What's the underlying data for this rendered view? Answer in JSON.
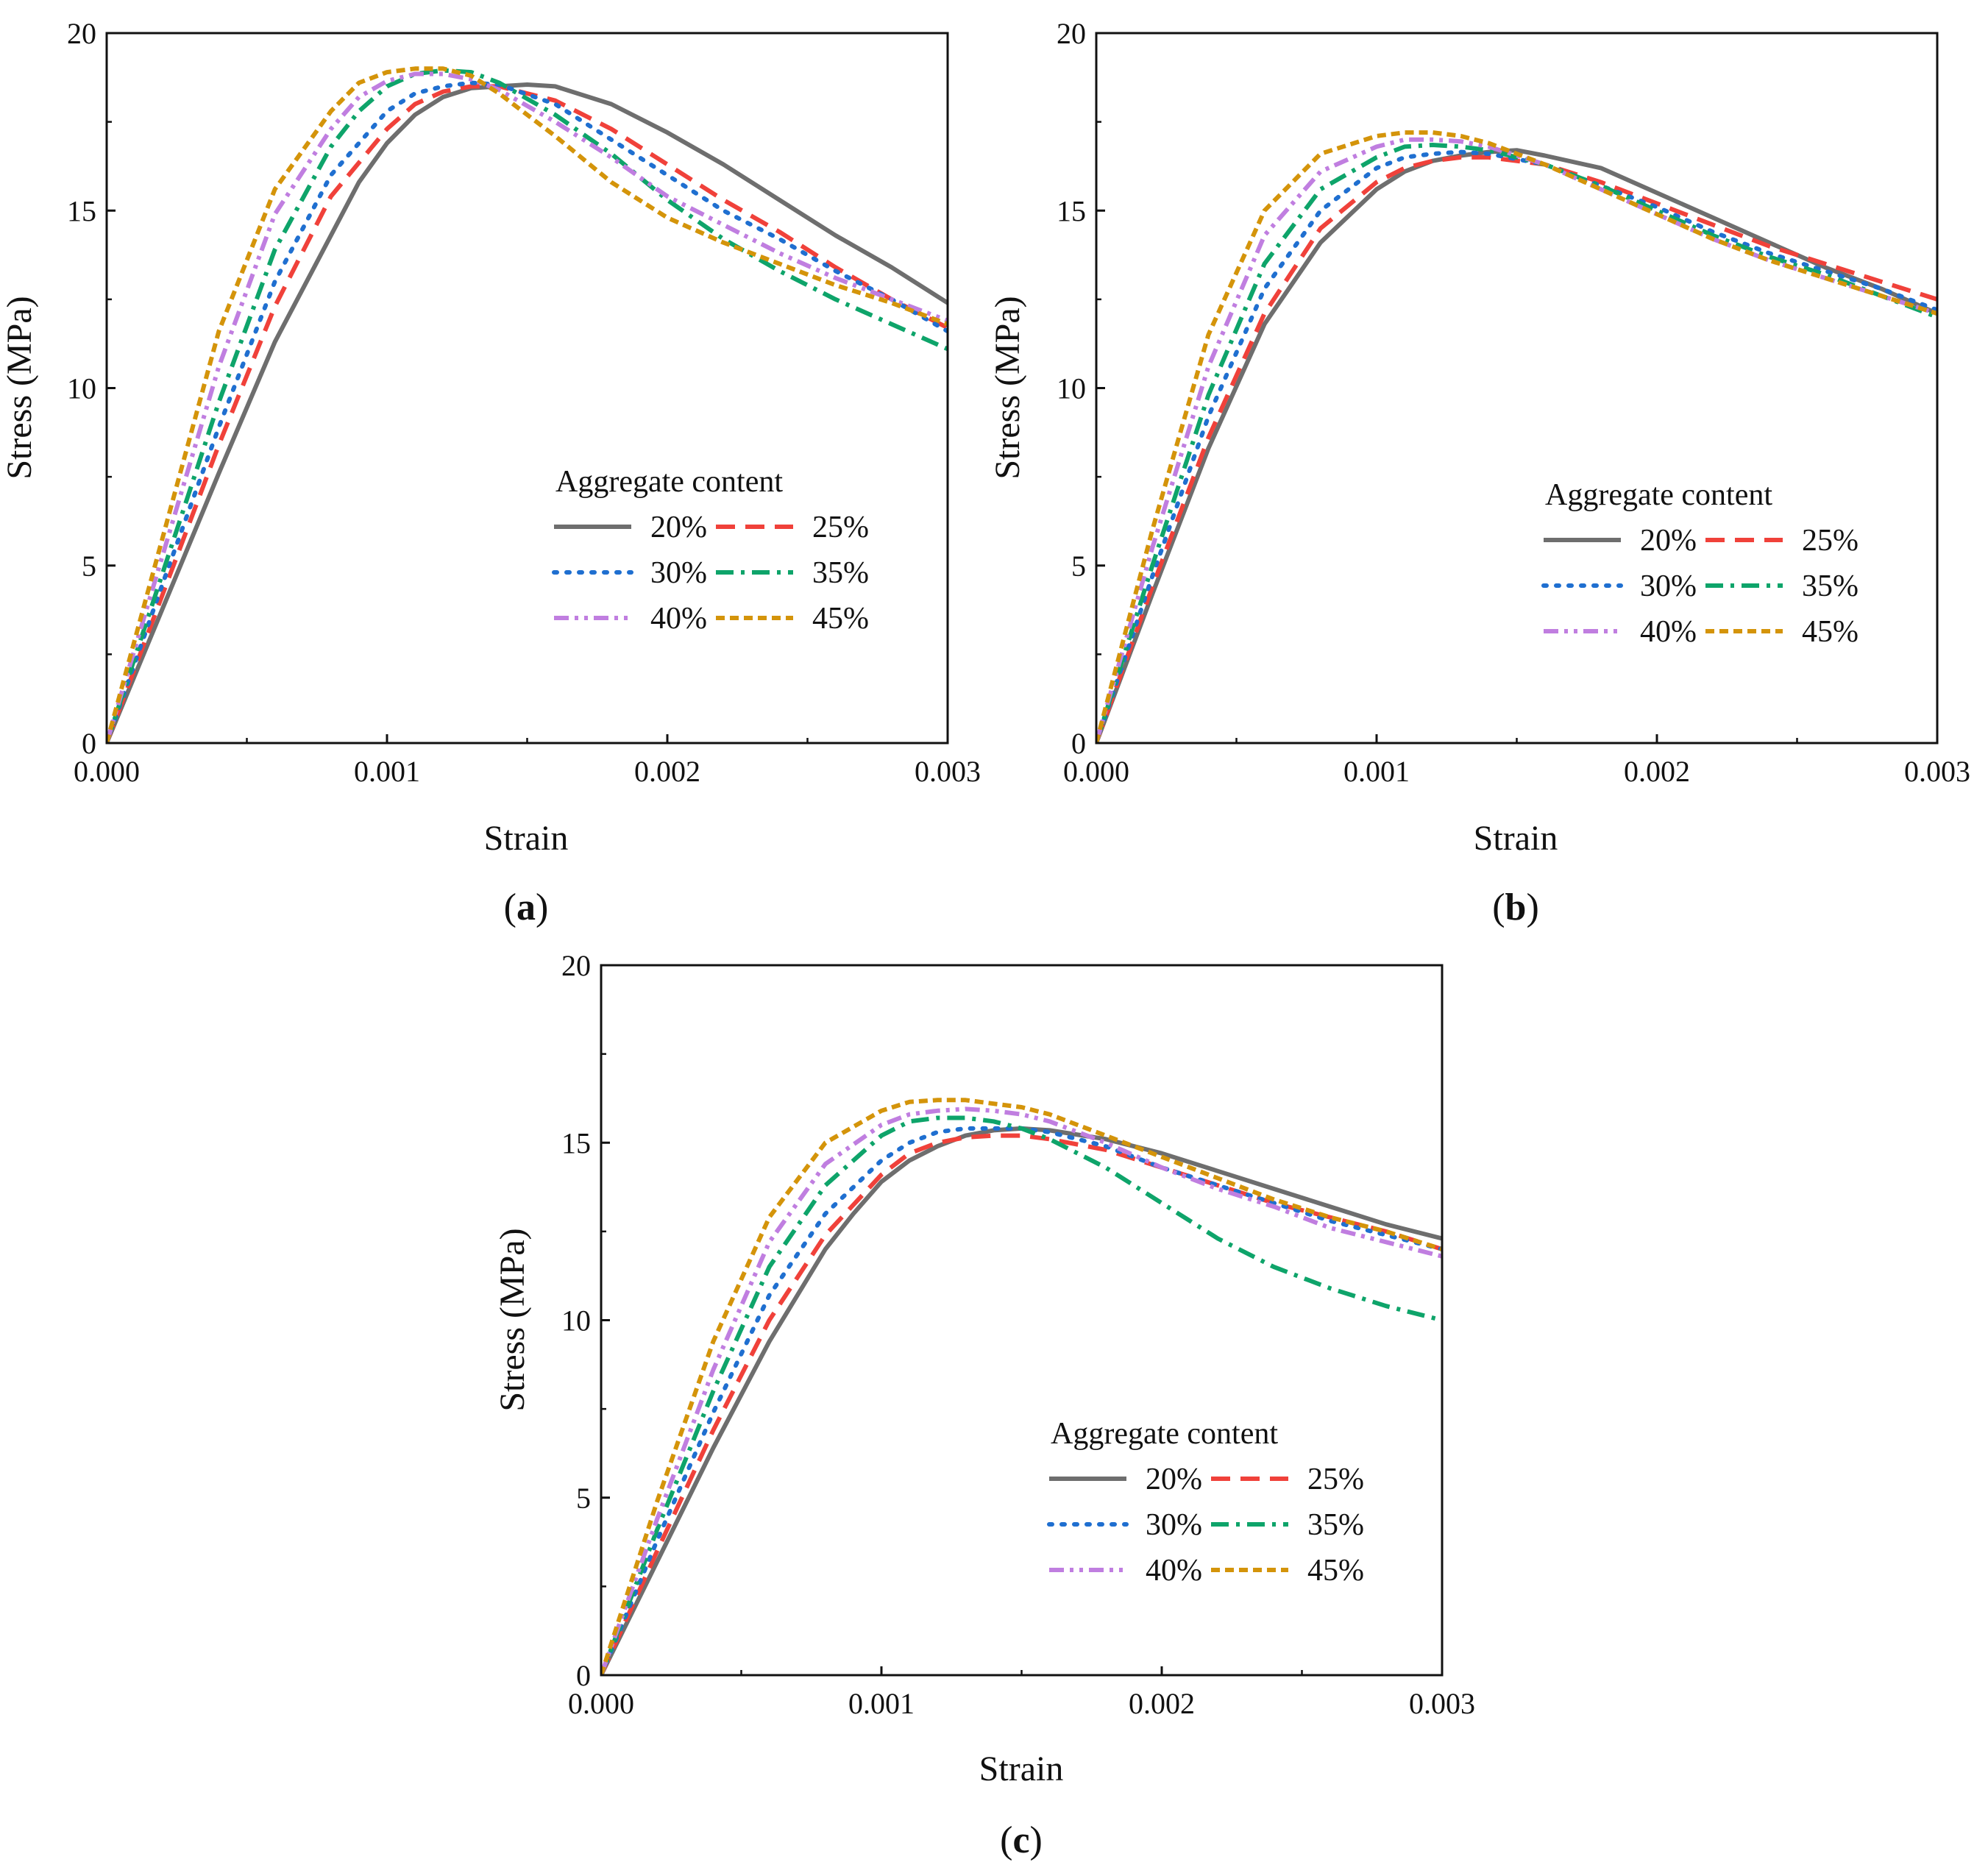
{
  "figure": {
    "panel_labels": [
      "a",
      "b",
      "c"
    ]
  },
  "legend_entries": [
    {
      "label": "20%",
      "color": "#6e6e6e",
      "dash": "solid"
    },
    {
      "label": "25%",
      "color": "#f0413a",
      "dash": "dash"
    },
    {
      "label": "30%",
      "color": "#1f6fd0",
      "dash": "dot"
    },
    {
      "label": "35%",
      "color": "#0ea46a",
      "dash": "dashdot"
    },
    {
      "label": "40%",
      "color": "#c07ee0",
      "dash": "dashdotdot"
    },
    {
      "label": "45%",
      "color": "#d4940a",
      "dash": "shortdash"
    }
  ],
  "chart_data": [
    {
      "type": "line",
      "panel": "a",
      "xlabel": "Strain",
      "ylabel": "Stress (MPa)",
      "xlim": [
        0,
        0.003
      ],
      "ylim": [
        0,
        20
      ],
      "xticks": [
        "0.000",
        "0.001",
        "0.002",
        "0.003"
      ],
      "yticks": [
        "0",
        "5",
        "10",
        "15",
        "20"
      ],
      "legend_title": "Aggregate content",
      "series": [
        {
          "name": "20%",
          "x": [
            0,
            0.0002,
            0.0004,
            0.0006,
            0.0008,
            0.0009,
            0.001,
            0.0011,
            0.0012,
            0.0013,
            0.0014,
            0.0015,
            0.0016,
            0.0018,
            0.002,
            0.0022,
            0.0024,
            0.0026,
            0.0028,
            0.003
          ],
          "y": [
            0,
            3.8,
            7.6,
            11.3,
            14.3,
            15.8,
            16.9,
            17.7,
            18.2,
            18.45,
            18.5,
            18.55,
            18.5,
            18.0,
            17.2,
            16.3,
            15.3,
            14.3,
            13.4,
            12.4
          ]
        },
        {
          "name": "25%",
          "x": [
            0,
            0.0002,
            0.0004,
            0.0006,
            0.0008,
            0.001,
            0.0011,
            0.0012,
            0.0013,
            0.0014,
            0.0016,
            0.0018,
            0.002,
            0.0022,
            0.0024,
            0.0026,
            0.0028,
            0.003
          ],
          "y": [
            0,
            4.2,
            8.4,
            12.3,
            15.4,
            17.3,
            18.0,
            18.35,
            18.5,
            18.5,
            18.1,
            17.3,
            16.3,
            15.3,
            14.4,
            13.4,
            12.5,
            11.7
          ]
        },
        {
          "name": "30%",
          "x": [
            0,
            0.0002,
            0.0004,
            0.0006,
            0.0008,
            0.001,
            0.0011,
            0.0012,
            0.0013,
            0.0014,
            0.0016,
            0.0018,
            0.002,
            0.0022,
            0.0024,
            0.0026,
            0.0028,
            0.003
          ],
          "y": [
            0,
            4.5,
            8.9,
            13.0,
            16.0,
            17.8,
            18.3,
            18.5,
            18.6,
            18.55,
            18.0,
            17.0,
            16.0,
            15.0,
            14.2,
            13.3,
            12.5,
            11.6
          ]
        },
        {
          "name": "35%",
          "x": [
            0,
            0.0002,
            0.0004,
            0.0006,
            0.0008,
            0.0009,
            0.001,
            0.0011,
            0.0012,
            0.0013,
            0.0014,
            0.0016,
            0.0018,
            0.002,
            0.0022,
            0.0024,
            0.0026,
            0.0028,
            0.003
          ],
          "y": [
            0,
            4.8,
            9.6,
            13.9,
            16.8,
            17.8,
            18.5,
            18.85,
            18.95,
            18.9,
            18.6,
            17.7,
            16.6,
            15.3,
            14.2,
            13.3,
            12.5,
            11.8,
            11.1
          ]
        },
        {
          "name": "40%",
          "x": [
            0,
            0.0002,
            0.0004,
            0.0006,
            0.0008,
            0.0009,
            0.001,
            0.0011,
            0.0012,
            0.0013,
            0.0014,
            0.0016,
            0.0018,
            0.002,
            0.0022,
            0.0024,
            0.0026,
            0.0028,
            0.003
          ],
          "y": [
            0,
            5.3,
            10.6,
            14.9,
            17.3,
            18.2,
            18.65,
            18.85,
            18.85,
            18.7,
            18.4,
            17.5,
            16.5,
            15.4,
            14.6,
            13.8,
            13.1,
            12.5,
            11.9
          ]
        },
        {
          "name": "45%",
          "x": [
            0,
            0.0002,
            0.0004,
            0.0006,
            0.0008,
            0.0009,
            0.001,
            0.0011,
            0.0012,
            0.0013,
            0.0014,
            0.0016,
            0.0018,
            0.002,
            0.0022,
            0.0024,
            0.0026,
            0.0028,
            0.003
          ],
          "y": [
            0,
            5.8,
            11.6,
            15.6,
            17.8,
            18.6,
            18.9,
            19.0,
            19.0,
            18.8,
            18.3,
            17.1,
            15.8,
            14.8,
            14.1,
            13.5,
            12.9,
            12.4,
            11.8
          ]
        }
      ]
    },
    {
      "type": "line",
      "panel": "b",
      "xlabel": "Strain",
      "ylabel": "Stress (MPa)",
      "xlim": [
        0,
        0.003
      ],
      "ylim": [
        0,
        20
      ],
      "xticks": [
        "0.000",
        "0.001",
        "0.002",
        "0.003"
      ],
      "yticks": [
        "0",
        "5",
        "10",
        "15",
        "20"
      ],
      "legend_title": "Aggregate content",
      "series": [
        {
          "name": "20%",
          "x": [
            0,
            0.0002,
            0.0004,
            0.0006,
            0.0008,
            0.001,
            0.0011,
            0.0012,
            0.0013,
            0.0014,
            0.0015,
            0.0016,
            0.0018,
            0.002,
            0.0022,
            0.0024,
            0.0026,
            0.0028,
            0.003
          ],
          "y": [
            0,
            4.2,
            8.3,
            11.8,
            14.1,
            15.6,
            16.1,
            16.4,
            16.55,
            16.65,
            16.7,
            16.55,
            16.2,
            15.5,
            14.8,
            14.1,
            13.4,
            12.8,
            12.1
          ]
        },
        {
          "name": "25%",
          "x": [
            0,
            0.0002,
            0.0004,
            0.0006,
            0.0008,
            0.001,
            0.0011,
            0.0012,
            0.0013,
            0.0014,
            0.0016,
            0.0018,
            0.002,
            0.0022,
            0.0024,
            0.0026,
            0.0028,
            0.003
          ],
          "y": [
            0,
            4.4,
            8.6,
            12.1,
            14.5,
            15.8,
            16.2,
            16.4,
            16.5,
            16.5,
            16.3,
            15.8,
            15.2,
            14.6,
            14.0,
            13.5,
            13.0,
            12.5
          ]
        },
        {
          "name": "30%",
          "x": [
            0,
            0.0002,
            0.0004,
            0.0006,
            0.0008,
            0.001,
            0.0011,
            0.0012,
            0.0013,
            0.0014,
            0.0016,
            0.0018,
            0.002,
            0.0022,
            0.0024,
            0.0026,
            0.0028,
            0.003
          ],
          "y": [
            0,
            4.7,
            9.2,
            12.8,
            15.0,
            16.2,
            16.5,
            16.6,
            16.65,
            16.6,
            16.3,
            15.7,
            15.1,
            14.4,
            13.8,
            13.3,
            12.8,
            12.2
          ]
        },
        {
          "name": "35%",
          "x": [
            0,
            0.0002,
            0.0004,
            0.0006,
            0.0008,
            0.001,
            0.0011,
            0.0012,
            0.0013,
            0.0014,
            0.0016,
            0.0018,
            0.002,
            0.0022,
            0.0024,
            0.0026,
            0.0028,
            0.003
          ],
          "y": [
            0,
            5.0,
            9.8,
            13.5,
            15.6,
            16.5,
            16.8,
            16.85,
            16.8,
            16.7,
            16.3,
            15.7,
            15.0,
            14.3,
            13.7,
            13.2,
            12.6,
            12.0
          ]
        },
        {
          "name": "40%",
          "x": [
            0,
            0.0002,
            0.0004,
            0.0006,
            0.0008,
            0.001,
            0.0011,
            0.0012,
            0.0013,
            0.0014,
            0.0016,
            0.0018,
            0.002,
            0.0022,
            0.0024,
            0.0026,
            0.0028,
            0.003
          ],
          "y": [
            0,
            5.5,
            10.6,
            14.3,
            16.1,
            16.8,
            17.0,
            17.0,
            16.95,
            16.8,
            16.3,
            15.6,
            14.9,
            14.2,
            13.6,
            13.1,
            12.6,
            12.1
          ]
        },
        {
          "name": "45%",
          "x": [
            0,
            0.0002,
            0.0004,
            0.0006,
            0.0008,
            0.001,
            0.0011,
            0.0012,
            0.0013,
            0.0014,
            0.0016,
            0.0018,
            0.002,
            0.0022,
            0.0024,
            0.0026,
            0.0028,
            0.003
          ],
          "y": [
            0,
            6.0,
            11.5,
            15.0,
            16.6,
            17.1,
            17.2,
            17.2,
            17.1,
            16.9,
            16.3,
            15.6,
            14.9,
            14.2,
            13.6,
            13.1,
            12.6,
            12.1
          ]
        }
      ]
    },
    {
      "type": "line",
      "panel": "c",
      "xlabel": "Strain",
      "ylabel": "Stress (MPa)",
      "xlim": [
        0,
        0.003
      ],
      "ylim": [
        0,
        20
      ],
      "xticks": [
        "0.000",
        "0.001",
        "0.002",
        "0.003"
      ],
      "yticks": [
        "0",
        "5",
        "10",
        "15",
        "20"
      ],
      "legend_title": "Aggregate content",
      "series": [
        {
          "name": "20%",
          "x": [
            0,
            0.0002,
            0.0004,
            0.0006,
            0.0008,
            0.0009,
            0.001,
            0.0011,
            0.0012,
            0.0013,
            0.0014,
            0.0015,
            0.0016,
            0.0018,
            0.002,
            0.0022,
            0.0024,
            0.0026,
            0.0028,
            0.003
          ],
          "y": [
            0,
            3.2,
            6.4,
            9.4,
            12.0,
            13.0,
            13.9,
            14.5,
            14.9,
            15.2,
            15.35,
            15.4,
            15.35,
            15.1,
            14.7,
            14.2,
            13.7,
            13.2,
            12.7,
            12.3
          ]
        },
        {
          "name": "25%",
          "x": [
            0,
            0.0002,
            0.0004,
            0.0006,
            0.0008,
            0.001,
            0.0011,
            0.0012,
            0.0013,
            0.0014,
            0.0015,
            0.0016,
            0.0018,
            0.002,
            0.0022,
            0.0024,
            0.0026,
            0.0028,
            0.003
          ],
          "y": [
            0,
            3.5,
            6.9,
            10.0,
            12.4,
            14.1,
            14.7,
            15.0,
            15.15,
            15.2,
            15.2,
            15.1,
            14.8,
            14.3,
            13.8,
            13.3,
            12.9,
            12.5,
            12.0
          ]
        },
        {
          "name": "30%",
          "x": [
            0,
            0.0002,
            0.0004,
            0.0006,
            0.0008,
            0.001,
            0.0011,
            0.0012,
            0.0013,
            0.0014,
            0.0015,
            0.0016,
            0.0018,
            0.002,
            0.0022,
            0.0024,
            0.0026,
            0.0028,
            0.003
          ],
          "y": [
            0,
            3.8,
            7.4,
            10.7,
            13.0,
            14.5,
            15.0,
            15.3,
            15.4,
            15.4,
            15.4,
            15.3,
            14.9,
            14.3,
            13.8,
            13.3,
            12.8,
            12.4,
            12.0
          ]
        },
        {
          "name": "35%",
          "x": [
            0,
            0.0002,
            0.0004,
            0.0006,
            0.0008,
            0.001,
            0.0011,
            0.0012,
            0.0013,
            0.0014,
            0.0015,
            0.0016,
            0.0018,
            0.002,
            0.0022,
            0.0024,
            0.0026,
            0.0028,
            0.003
          ],
          "y": [
            0,
            4.1,
            8.0,
            11.5,
            13.8,
            15.2,
            15.6,
            15.7,
            15.7,
            15.6,
            15.4,
            15.1,
            14.3,
            13.3,
            12.3,
            11.5,
            10.9,
            10.4,
            10.0
          ]
        },
        {
          "name": "40%",
          "x": [
            0,
            0.0002,
            0.0004,
            0.0006,
            0.0008,
            0.001,
            0.0011,
            0.0012,
            0.0013,
            0.0014,
            0.0015,
            0.0016,
            0.0018,
            0.002,
            0.0022,
            0.0024,
            0.0026,
            0.0028,
            0.003
          ],
          "y": [
            0,
            4.4,
            8.6,
            12.2,
            14.4,
            15.5,
            15.8,
            15.9,
            15.95,
            15.9,
            15.8,
            15.6,
            15.0,
            14.3,
            13.7,
            13.2,
            12.6,
            12.2,
            11.8
          ]
        },
        {
          "name": "45%",
          "x": [
            0,
            0.0002,
            0.0004,
            0.0006,
            0.0008,
            0.001,
            0.0011,
            0.0012,
            0.0013,
            0.0014,
            0.0015,
            0.0016,
            0.0018,
            0.002,
            0.0022,
            0.0024,
            0.0026,
            0.0028,
            0.003
          ],
          "y": [
            0,
            4.9,
            9.4,
            12.9,
            15.0,
            15.9,
            16.15,
            16.2,
            16.2,
            16.1,
            16.0,
            15.8,
            15.2,
            14.6,
            14.0,
            13.4,
            12.9,
            12.5,
            12.0
          ]
        }
      ]
    }
  ]
}
